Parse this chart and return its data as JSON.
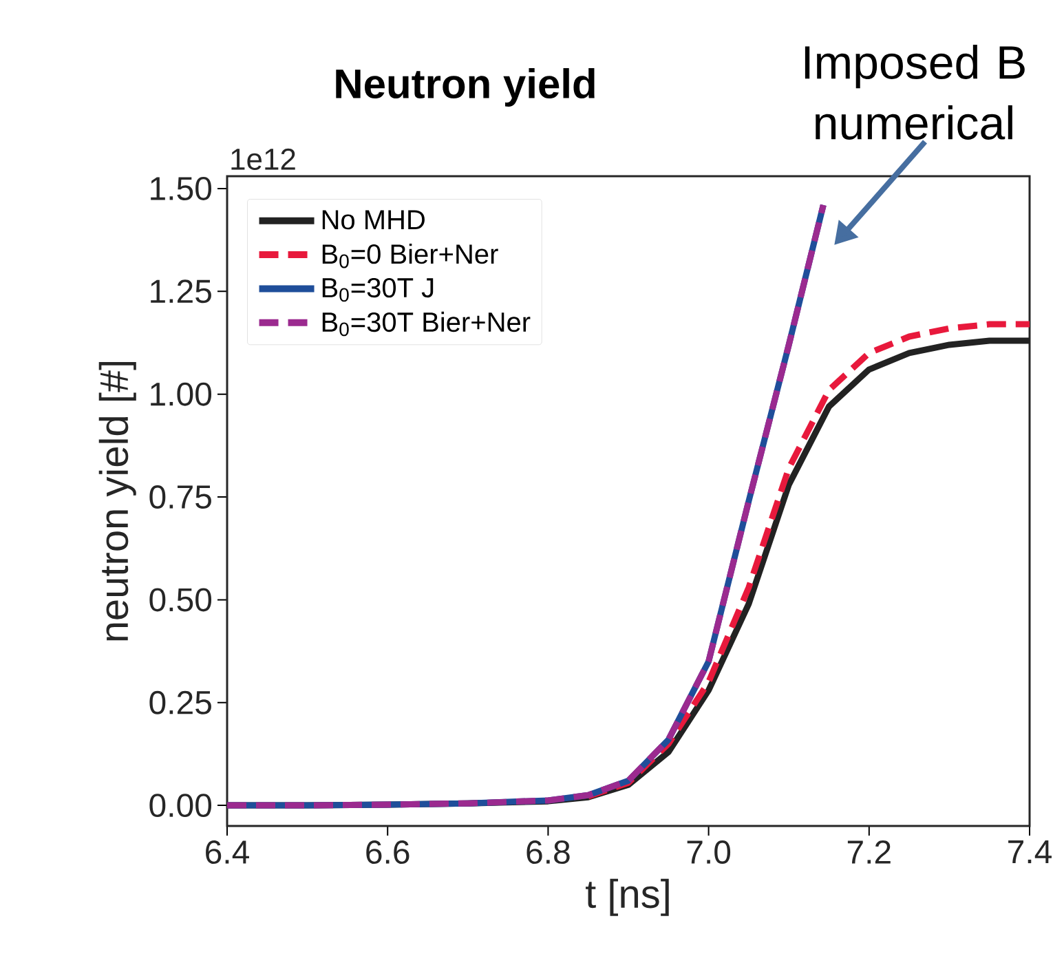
{
  "chart_data": {
    "type": "line",
    "title": "**Neutron yield**",
    "xlabel": "t  [ns]",
    "ylabel": "neutron yield  [#]",
    "x": [
      6.4,
      6.5,
      6.6,
      6.7,
      6.8,
      6.85,
      6.9,
      6.95,
      7.0,
      7.05,
      7.1,
      7.15,
      7.2,
      7.25,
      7.3,
      7.35,
      7.4
    ],
    "series": [
      {
        "name": "No MHD",
        "color": "#222222",
        "line_style": "solid",
        "values": [
          0,
          0,
          0.002,
          0.005,
          0.01,
          0.02,
          0.05,
          0.13,
          0.28,
          0.49,
          0.78,
          0.97,
          1.06,
          1.1,
          1.12,
          1.13,
          1.13
        ]
      },
      {
        "name": "B$_{0}$=0 Bier+Ner",
        "color": "#e8193c",
        "line_style": "dashed",
        "values": [
          null,
          null,
          null,
          null,
          null,
          0.022,
          0.055,
          0.15,
          0.3,
          0.53,
          0.82,
          1.01,
          1.1,
          1.14,
          1.16,
          1.17,
          1.17
        ]
      },
      {
        "name": "B$_{0}$=30T J",
        "color": "#1f4e9a",
        "line_style": "solid",
        "x": [
          6.4,
          6.5,
          6.6,
          6.7,
          6.8,
          6.85,
          6.9,
          6.95,
          7.0,
          7.05,
          7.1,
          7.143
        ],
        "values": [
          0,
          0,
          0.002,
          0.005,
          0.012,
          0.025,
          0.06,
          0.16,
          0.35,
          0.74,
          1.12,
          1.46
        ]
      },
      {
        "name": "B$_{0}$=30T Bier+Ner",
        "color": "#9b2a8f",
        "line_style": "dashed",
        "x": [
          6.4,
          6.5,
          6.6,
          6.7,
          6.8,
          6.85,
          6.9,
          6.95,
          7.0,
          7.05,
          7.1,
          7.143
        ],
        "values": [
          0,
          0,
          0.002,
          0.005,
          0.012,
          0.025,
          0.06,
          0.16,
          0.35,
          0.74,
          1.12,
          1.46
        ]
      }
    ],
    "xlim": [
      6.4,
      7.4
    ],
    "ylim": [
      -0.05,
      1.53
    ],
    "xticks": [
      {
        "value": 6.4,
        "label": "6.4"
      },
      {
        "value": 6.6,
        "label": "6.6"
      },
      {
        "value": 6.8,
        "label": "6.8"
      },
      {
        "value": 7.0,
        "label": "7.0"
      },
      {
        "value": 7.2,
        "label": "7.2"
      },
      {
        "value": 7.4,
        "label": "7.4"
      }
    ],
    "yticks": [
      {
        "value": 0,
        "label": "0.00"
      },
      {
        "value": 0.25,
        "label": "0.25"
      },
      {
        "value": 0.5,
        "label": "0.50"
      },
      {
        "value": 0.75,
        "label": "0.75"
      },
      {
        "value": 1.0,
        "label": "1.00"
      },
      {
        "value": 1.25,
        "label": "1.25"
      },
      {
        "value": 1.5,
        "label": "1.50"
      }
    ],
    "legend": "top left",
    "marker": "none",
    "annotations": [
      "1e12",
      "Imposed B numerical"
    ]
  }
}
